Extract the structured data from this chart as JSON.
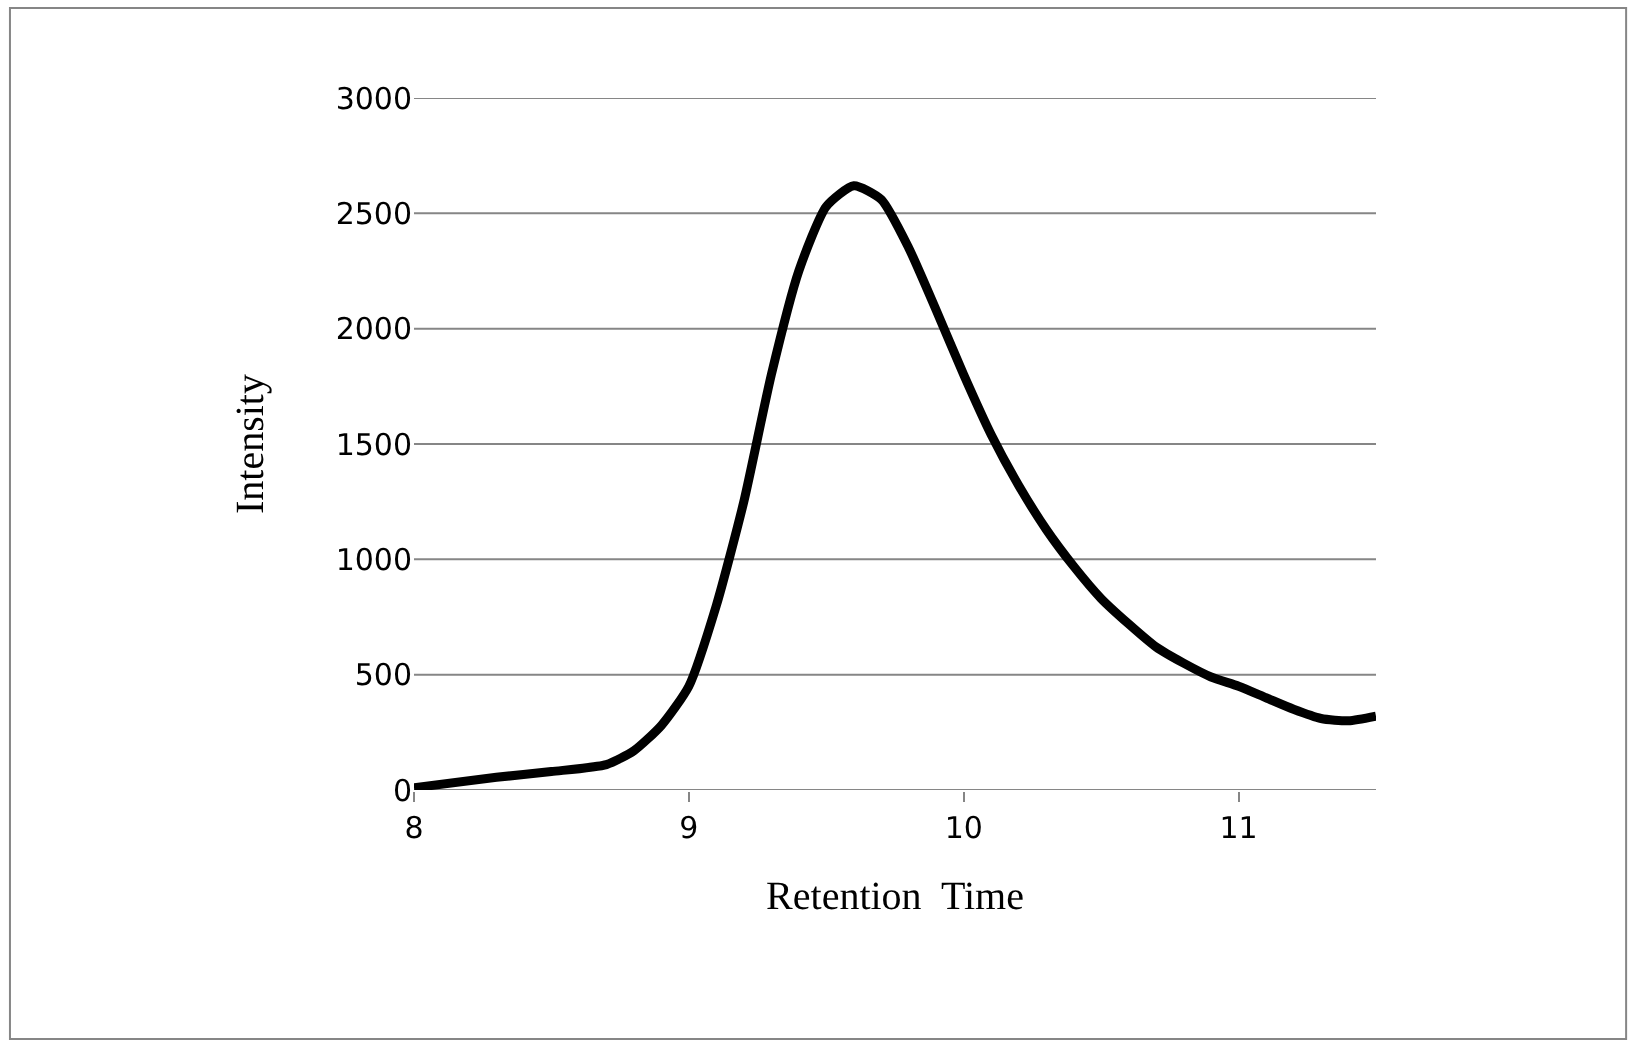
{
  "chart_data": {
    "type": "line",
    "xlabel": "Retention  Time",
    "ylabel": "Intensity",
    "x": [
      8,
      8.3,
      8.5,
      8.7,
      8.8,
      8.9,
      9.0,
      9.1,
      9.2,
      9.3,
      9.4,
      9.5,
      9.6,
      9.7,
      9.8,
      9.9,
      10.0,
      10.1,
      10.2,
      10.3,
      10.4,
      10.5,
      10.6,
      10.7,
      10.8,
      10.9,
      11.0,
      11.1,
      11.2,
      11.3,
      11.4,
      11.5
    ],
    "series": [
      {
        "color": "#000000",
        "values": [
          10,
          55,
          80,
          110,
          170,
          280,
          450,
          800,
          1250,
          1800,
          2250,
          2530,
          2620,
          2560,
          2350,
          2080,
          1800,
          1540,
          1320,
          1130,
          970,
          830,
          720,
          620,
          550,
          490,
          450,
          400,
          350,
          310,
          300,
          320
        ]
      }
    ],
    "xlim": [
      8,
      11.5
    ],
    "xticks": [
      8,
      9,
      10,
      11
    ],
    "ylim": [
      0,
      3000
    ],
    "yticks": [
      0,
      500,
      1000,
      1500,
      2000,
      2500,
      3000
    ],
    "grid": "y",
    "marker": "none",
    "line_style": "solid"
  }
}
